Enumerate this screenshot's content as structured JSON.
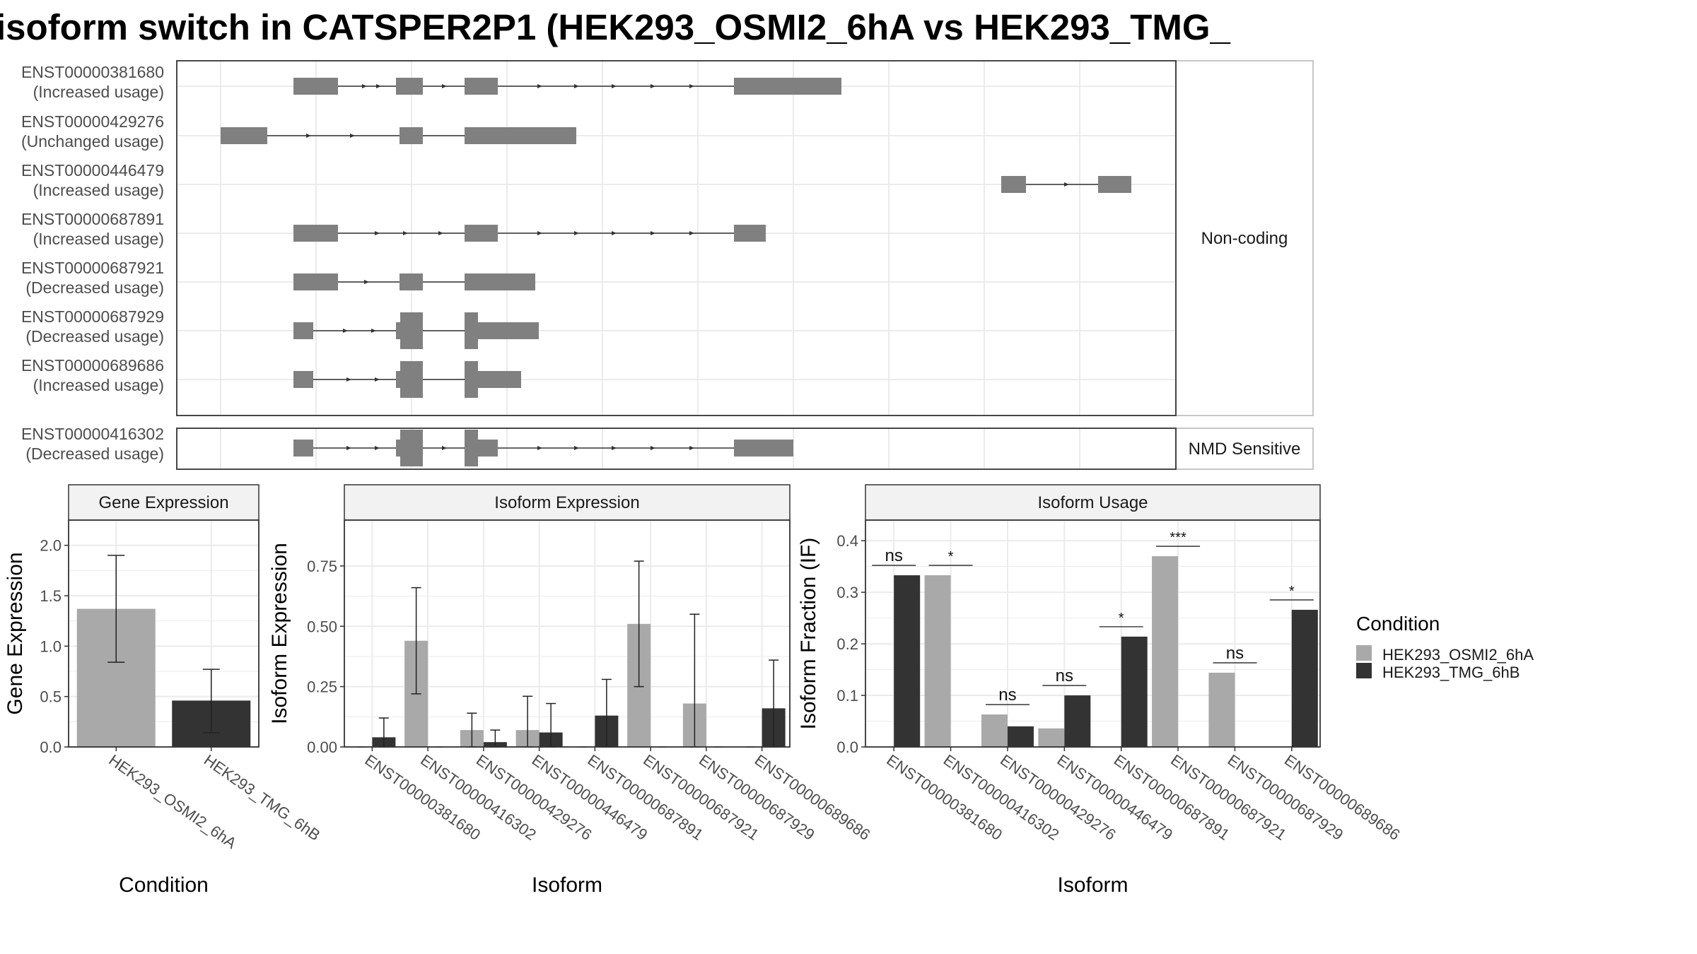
{
  "title": "isoform switch in CATSPER2P1 (HEK293_OSMI2_6hA vs HEK293_TMG_",
  "colors": {
    "cond_a": "#a9a9a9",
    "cond_b": "#333333",
    "exon": "#808080",
    "grid": "#ebebeb",
    "strip": "#f2f2f2"
  },
  "legend": {
    "title": "Condition",
    "items": [
      {
        "label": "HEK293_OSMI2_6hA",
        "color": "#a9a9a9"
      },
      {
        "label": "HEK293_TMG_6hB",
        "color": "#333333"
      }
    ]
  },
  "structure": {
    "group_labels": [
      "Non-coding",
      "NMD Sensitive"
    ],
    "transcripts": [
      {
        "id": "ENST00000381680",
        "usage": "(Increased usage)",
        "group": 0
      },
      {
        "id": "ENST00000429276",
        "usage": "(Unchanged usage)",
        "group": 0
      },
      {
        "id": "ENST00000446479",
        "usage": "(Increased usage)",
        "group": 0
      },
      {
        "id": "ENST00000687891",
        "usage": "(Increased usage)",
        "group": 0
      },
      {
        "id": "ENST00000687921",
        "usage": "(Decreased usage)",
        "group": 0
      },
      {
        "id": "ENST00000687929",
        "usage": "(Decreased usage)",
        "group": 0
      },
      {
        "id": "ENST00000689686",
        "usage": "(Increased usage)",
        "group": 0
      },
      {
        "id": "ENST00000416302",
        "usage": "(Decreased usage)",
        "group": 1
      }
    ]
  },
  "chart_data": [
    {
      "type": "bar",
      "title": "Gene Expression",
      "xlabel": "Condition",
      "ylabel": "Gene Expression",
      "ylim": [
        0,
        2.25
      ],
      "yticks": [
        "0.0",
        "0.5",
        "1.0",
        "1.5",
        "2.0"
      ],
      "categories": [
        "HEK293_OSMI2_6hA",
        "HEK293_TMG_6hB"
      ],
      "values": [
        1.37,
        0.46
      ],
      "error": [
        [
          0.84,
          1.9
        ],
        [
          0.14,
          0.77
        ]
      ]
    },
    {
      "type": "bar",
      "title": "Isoform Expression",
      "xlabel": "Isoform",
      "ylabel": "Isoform Expression",
      "ylim": [
        0,
        0.94
      ],
      "yticks": [
        "0.00",
        "0.25",
        "0.50",
        "0.75"
      ],
      "categories": [
        "ENST00000381680",
        "ENST00000416302",
        "ENST00000429276",
        "ENST00000446479",
        "ENST00000687891",
        "ENST00000687921",
        "ENST00000687929",
        "ENST00000689686"
      ],
      "series": [
        {
          "name": "HEK293_OSMI2_6hA",
          "values": [
            0,
            0.44,
            0.07,
            0.07,
            0,
            0.51,
            0.18,
            0
          ],
          "error": [
            null,
            [
              0.22,
              0.66
            ],
            [
              0,
              0.14
            ],
            [
              0,
              0.21
            ],
            null,
            [
              0.25,
              0.77
            ],
            [
              0,
              0.55
            ],
            null
          ]
        },
        {
          "name": "HEK293_TMG_6hB",
          "values": [
            0.04,
            0,
            0.02,
            0.06,
            0.13,
            0,
            0,
            0.16
          ],
          "error": [
            [
              0,
              0.12
            ],
            null,
            [
              0,
              0.07
            ],
            [
              0,
              0.18
            ],
            [
              0,
              0.28
            ],
            null,
            null,
            [
              0,
              0.36
            ]
          ]
        }
      ]
    },
    {
      "type": "bar",
      "title": "Isoform Usage",
      "xlabel": "Isoform",
      "ylabel": "Isoform Fraction (IF)",
      "ylim": [
        0,
        0.44
      ],
      "yticks": [
        "0.0",
        "0.1",
        "0.2",
        "0.3",
        "0.4"
      ],
      "categories": [
        "ENST00000381680",
        "ENST00000416302",
        "ENST00000429276",
        "ENST00000446479",
        "ENST00000687891",
        "ENST00000687921",
        "ENST00000687929",
        "ENST00000689686"
      ],
      "series": [
        {
          "name": "HEK293_OSMI2_6hA",
          "values": [
            0,
            0.333,
            0.063,
            0.036,
            0,
            0.37,
            0.144,
            0
          ]
        },
        {
          "name": "HEK293_TMG_6hB",
          "values": [
            0.333,
            0,
            0.04,
            0.1,
            0.214,
            0,
            0,
            0.266
          ]
        }
      ],
      "significance": [
        "ns",
        "*",
        "ns",
        "ns",
        "*",
        "***",
        "ns",
        "*"
      ]
    }
  ]
}
